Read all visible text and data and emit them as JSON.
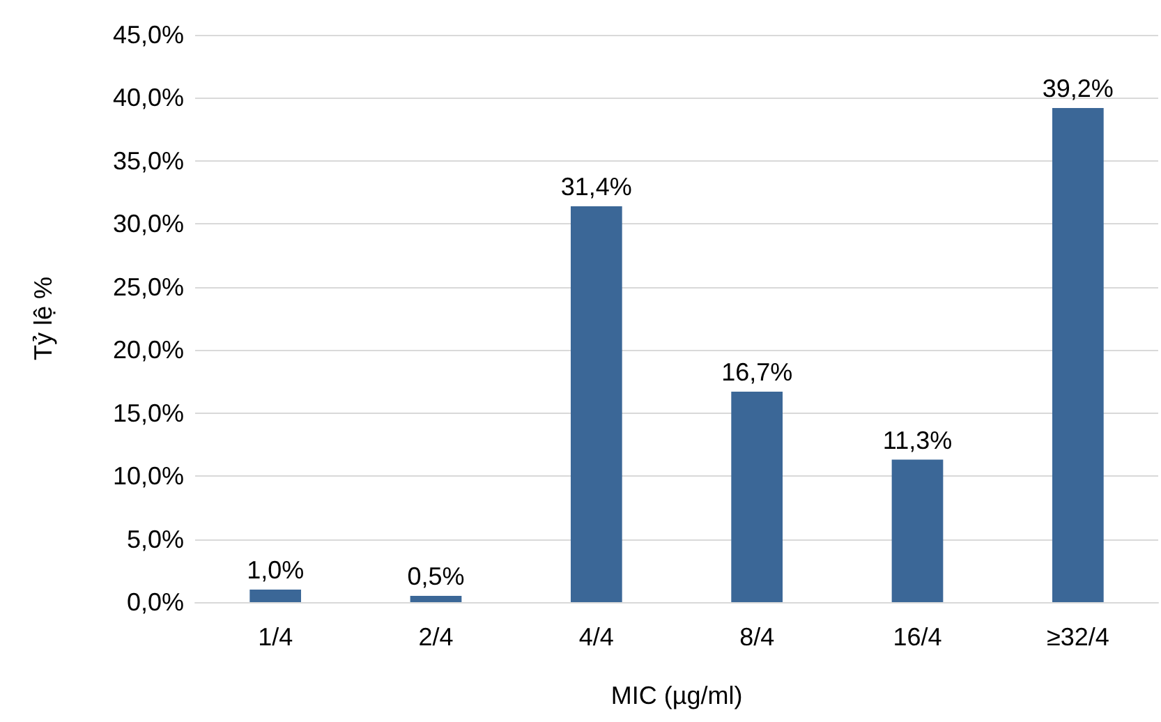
{
  "chart_data": {
    "type": "bar",
    "xlabel": "MIC (µg/ml)",
    "ylabel": "Tỷ lệ %",
    "categories": [
      "1/4",
      "2/4",
      "4/4",
      "8/4",
      "16/4",
      "≥32/4"
    ],
    "values": [
      1.0,
      0.5,
      31.4,
      16.7,
      11.3,
      39.2
    ],
    "value_labels": [
      "1,0%",
      "0,5%",
      "31,4%",
      "16,7%",
      "11,3%",
      "39,2%"
    ],
    "color": "#3b6797",
    "ylim": [
      0,
      45
    ],
    "yticks": [
      {
        "value": 0,
        "label": "0,0%"
      },
      {
        "value": 5,
        "label": "5,0%"
      },
      {
        "value": 10,
        "label": "10,0%"
      },
      {
        "value": 15,
        "label": "15,0%"
      },
      {
        "value": 20,
        "label": "20,0%"
      },
      {
        "value": 25,
        "label": "25,0%"
      },
      {
        "value": 30,
        "label": "30,0%"
      },
      {
        "value": 35,
        "label": "35,0%"
      },
      {
        "value": 40,
        "label": "40,0%"
      },
      {
        "value": 45,
        "label": "45,0%"
      }
    ],
    "grid": "y"
  }
}
